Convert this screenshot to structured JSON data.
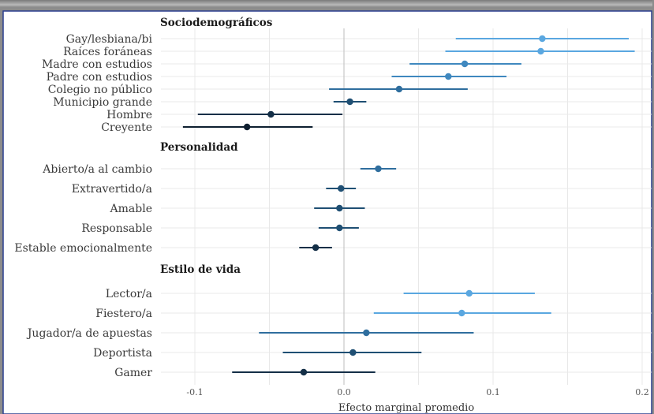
{
  "colors": {
    "background": "#ffffff",
    "border": "#2b3f8f",
    "gridline": "#e8e8e8",
    "zero_line": "#c8c8c8"
  },
  "chart_data": {
    "type": "scatter",
    "subtype": "dot-and-whisker",
    "xlabel": "Efecto marginal promedio",
    "xlim": [
      -0.115,
      0.205
    ],
    "x_ticks": [
      -0.1,
      0.0,
      0.1,
      0.2
    ],
    "x_tick_labels": [
      "-0.1",
      "0.0",
      "0.1",
      "0.2"
    ],
    "grid": true,
    "groups": [
      {
        "title": "Sociodemográficos",
        "items": [
          {
            "label": "Gay/lesbiana/bi",
            "estimate": 0.133,
            "low": 0.075,
            "high": 0.191,
            "color": "#5aa7e0"
          },
          {
            "label": "Raíces foráneas",
            "estimate": 0.132,
            "low": 0.068,
            "high": 0.195,
            "color": "#5aa7e0"
          },
          {
            "label": "Madre con estudios",
            "estimate": 0.081,
            "low": 0.044,
            "high": 0.119,
            "color": "#3f88bf"
          },
          {
            "label": "Padre con estudios",
            "estimate": 0.07,
            "low": 0.032,
            "high": 0.109,
            "color": "#3f88bf"
          },
          {
            "label": "Colegio no público",
            "estimate": 0.037,
            "low": -0.01,
            "high": 0.083,
            "color": "#2f6e9e"
          },
          {
            "label": "Municipio grande",
            "estimate": 0.004,
            "low": -0.007,
            "high": 0.015,
            "color": "#1f4f73"
          },
          {
            "label": "Hombre",
            "estimate": -0.049,
            "low": -0.098,
            "high": -0.001,
            "color": "#142f47"
          },
          {
            "label": "Creyente",
            "estimate": -0.065,
            "low": -0.108,
            "high": -0.021,
            "color": "#0e1f30"
          }
        ]
      },
      {
        "title": "Personalidad",
        "items": [
          {
            "label": "Abierto/a al cambio",
            "estimate": 0.023,
            "low": 0.011,
            "high": 0.035,
            "color": "#2f6e9e"
          },
          {
            "label": "Extravertido/a",
            "estimate": -0.002,
            "low": -0.012,
            "high": 0.008,
            "color": "#1f4f73"
          },
          {
            "label": "Amable",
            "estimate": -0.003,
            "low": -0.02,
            "high": 0.014,
            "color": "#1f4f73"
          },
          {
            "label": "Responsable",
            "estimate": -0.003,
            "low": -0.017,
            "high": 0.01,
            "color": "#1f4f73"
          },
          {
            "label": "Estable emocionalmente",
            "estimate": -0.019,
            "low": -0.03,
            "high": -0.008,
            "color": "#142f47"
          }
        ]
      },
      {
        "title": "Estilo de vida",
        "items": [
          {
            "label": "Lector/a",
            "estimate": 0.084,
            "low": 0.04,
            "high": 0.128,
            "color": "#5aa7e0"
          },
          {
            "label": "Fiestero/a",
            "estimate": 0.079,
            "low": 0.02,
            "high": 0.139,
            "color": "#5aa7e0"
          },
          {
            "label": "Jugador/a de apuestas",
            "estimate": 0.015,
            "low": -0.057,
            "high": 0.087,
            "color": "#2f6e9e"
          },
          {
            "label": "Deportista",
            "estimate": 0.006,
            "low": -0.041,
            "high": 0.052,
            "color": "#1f4f73"
          },
          {
            "label": "Gamer",
            "estimate": -0.027,
            "low": -0.075,
            "high": 0.021,
            "color": "#142f47"
          }
        ]
      }
    ]
  }
}
